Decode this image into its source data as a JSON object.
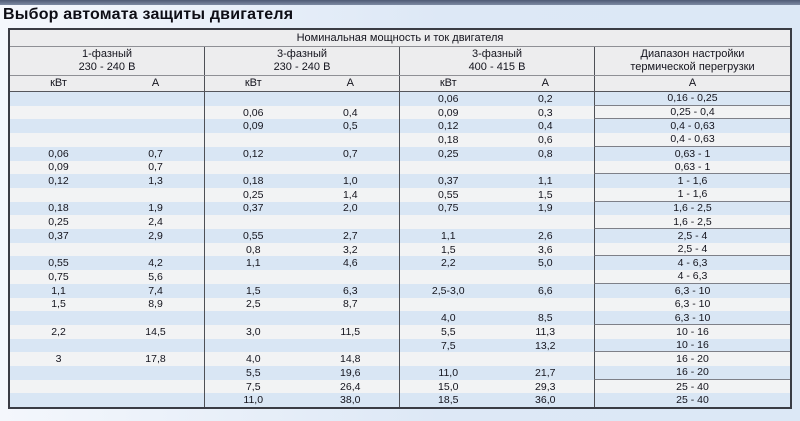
{
  "page": {
    "title": "Выбор автомата защиты двигателя"
  },
  "table": {
    "span_header": "Номинальная мощность и ток двигателя",
    "groups": [
      {
        "line1": "1-фазный",
        "line2": "230 - 240 В"
      },
      {
        "line1": "3-фазный",
        "line2": "230 - 240 В"
      },
      {
        "line1": "3-фазный",
        "line2": "400 - 415 В"
      },
      {
        "line1": "Диапазон настройки",
        "line2": "термической перегрузки"
      }
    ],
    "unit_headers": [
      "кВт",
      "А",
      "кВт",
      "А",
      "кВт",
      "А",
      "А"
    ],
    "rows": [
      {
        "cells": [
          "",
          "",
          "",
          "",
          "0,06",
          "0,2",
          "0,16 - 0,25"
        ],
        "sep": true
      },
      {
        "cells": [
          "",
          "",
          "0,06",
          "0,4",
          "0,09",
          "0,3",
          "0,25 - 0,4"
        ],
        "sep": true
      },
      {
        "cells": [
          "",
          "",
          "0,09",
          "0,5",
          "0,12",
          "0,4",
          "0,4 - 0,63"
        ],
        "sep": false
      },
      {
        "cells": [
          "",
          "",
          "",
          "",
          "0,18",
          "0,6",
          "0,4 - 0,63"
        ],
        "sep": true
      },
      {
        "cells": [
          "0,06",
          "0,7",
          "0,12",
          "0,7",
          "0,25",
          "0,8",
          "0,63 - 1"
        ],
        "sep": false
      },
      {
        "cells": [
          "0,09",
          "0,7",
          "",
          "",
          "",
          "",
          "0,63 - 1"
        ],
        "sep": true
      },
      {
        "cells": [
          "0,12",
          "1,3",
          "0,18",
          "1,0",
          "0,37",
          "1,1",
          "1 - 1,6"
        ],
        "sep": false
      },
      {
        "cells": [
          "",
          "",
          "0,25",
          "1,4",
          "0,55",
          "1,5",
          "1 - 1,6"
        ],
        "sep": true
      },
      {
        "cells": [
          "0,18",
          "1,9",
          "0,37",
          "2,0",
          "0,75",
          "1,9",
          "1,6 - 2,5"
        ],
        "sep": false
      },
      {
        "cells": [
          "0,25",
          "2,4",
          "",
          "",
          "",
          "",
          "1,6 - 2,5"
        ],
        "sep": true
      },
      {
        "cells": [
          "0,37",
          "2,9",
          "0,55",
          "2,7",
          "1,1",
          "2,6",
          "2,5 - 4"
        ],
        "sep": false
      },
      {
        "cells": [
          "",
          "",
          "0,8",
          "3,2",
          "1,5",
          "3,6",
          "2,5 - 4"
        ],
        "sep": true
      },
      {
        "cells": [
          "0,55",
          "4,2",
          "1,1",
          "4,6",
          "2,2",
          "5,0",
          "4 - 6,3"
        ],
        "sep": false
      },
      {
        "cells": [
          "0,75",
          "5,6",
          "",
          "",
          "",
          "",
          "4 - 6,3"
        ],
        "sep": true
      },
      {
        "cells": [
          "1,1",
          "7,4",
          "1,5",
          "6,3",
          "2,5-3,0",
          "6,6",
          "6,3 - 10"
        ],
        "sep": false
      },
      {
        "cells": [
          "1,5",
          "8,9",
          "2,5",
          "8,7",
          "",
          "",
          "6,3 - 10"
        ],
        "sep": false
      },
      {
        "cells": [
          "",
          "",
          "",
          "",
          "4,0",
          "8,5",
          "6,3 - 10"
        ],
        "sep": true
      },
      {
        "cells": [
          "2,2",
          "14,5",
          "3,0",
          "11,5",
          "5,5",
          "11,3",
          "10 - 16"
        ],
        "sep": false
      },
      {
        "cells": [
          "",
          "",
          "",
          "",
          "7,5",
          "13,2",
          "10 - 16"
        ],
        "sep": true
      },
      {
        "cells": [
          "3",
          "17,8",
          "4,0",
          "14,8",
          "",
          "",
          "16 - 20"
        ],
        "sep": false
      },
      {
        "cells": [
          "",
          "",
          "5,5",
          "19,6",
          "11,0",
          "21,7",
          "16 - 20"
        ],
        "sep": true
      },
      {
        "cells": [
          "",
          "",
          "7,5",
          "26,4",
          "15,0",
          "29,3",
          "25 - 40"
        ],
        "sep": false
      },
      {
        "cells": [
          "",
          "",
          "11,0",
          "38,0",
          "18,5",
          "36,0",
          "25 - 40"
        ],
        "sep": false
      }
    ]
  },
  "colors": {
    "page_bg": "#dde8f6",
    "top_bar": "#5c6a84",
    "header_bg": "#ededee",
    "row_blue": "#d9e6f4",
    "row_alt": "#f2f3f4",
    "outer_border": "#3a3c44",
    "group_line": "#4e5056",
    "separator_line": "#7e8088",
    "text": "#14141d"
  }
}
